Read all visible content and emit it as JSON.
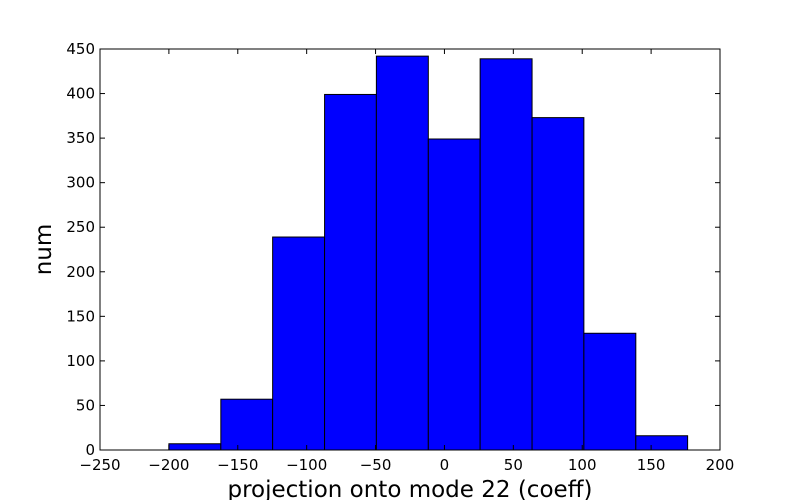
{
  "chart_data": {
    "type": "bar",
    "subtype": "histogram",
    "title": "",
    "xlabel": "projection onto mode 22 (coeff)",
    "ylabel": "num",
    "xlim": [
      -250,
      200
    ],
    "ylim": [
      0,
      450
    ],
    "grid": false,
    "legend": "none",
    "bar_color": "#0000ff",
    "edge_color": "#000000",
    "bins": [
      {
        "x0": -200,
        "x1": -162.3,
        "value": 7
      },
      {
        "x0": -162.3,
        "x1": -124.7,
        "value": 57
      },
      {
        "x0": -124.7,
        "x1": -87.0,
        "value": 239
      },
      {
        "x0": -87.0,
        "x1": -49.4,
        "value": 399
      },
      {
        "x0": -49.4,
        "x1": -11.7,
        "value": 442
      },
      {
        "x0": -11.7,
        "x1": 25.9,
        "value": 349
      },
      {
        "x0": 25.9,
        "x1": 63.6,
        "value": 439
      },
      {
        "x0": 63.6,
        "x1": 101.2,
        "value": 373
      },
      {
        "x0": 101.2,
        "x1": 138.9,
        "value": 131
      },
      {
        "x0": 138.9,
        "x1": 176.5,
        "value": 16
      }
    ],
    "xticks": [
      "−250",
      "−200",
      "−150",
      "−100",
      "−50",
      "0",
      "50",
      "100",
      "150",
      "200"
    ],
    "xtick_values": [
      -250,
      -200,
      -150,
      -100,
      -50,
      0,
      50,
      100,
      150,
      200
    ],
    "yticks": [
      "0",
      "50",
      "100",
      "150",
      "200",
      "250",
      "300",
      "350",
      "400",
      "450"
    ],
    "ytick_values": [
      0,
      50,
      100,
      150,
      200,
      250,
      300,
      350,
      400,
      450
    ]
  }
}
